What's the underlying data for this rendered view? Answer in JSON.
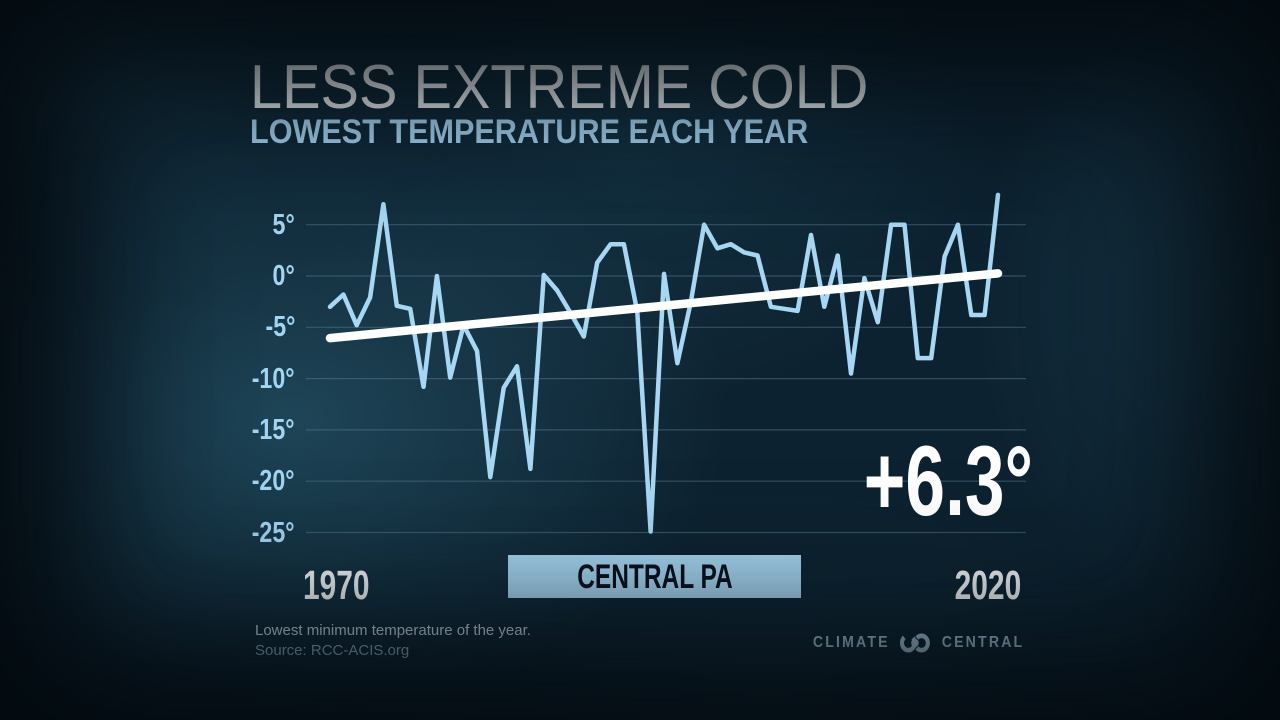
{
  "header": {
    "title": "LESS EXTREME COLD",
    "subtitle": "LOWEST TEMPERATURE EACH YEAR"
  },
  "chart_data": {
    "type": "line",
    "title": "LESS EXTREME COLD",
    "subtitle": "LOWEST TEMPERATURE EACH YEAR",
    "x": [
      1970,
      1971,
      1972,
      1973,
      1974,
      1975,
      1976,
      1977,
      1978,
      1979,
      1980,
      1981,
      1982,
      1983,
      1984,
      1985,
      1986,
      1987,
      1988,
      1989,
      1990,
      1991,
      1992,
      1993,
      1994,
      1995,
      1996,
      1997,
      1998,
      1999,
      2000,
      2001,
      2002,
      2003,
      2004,
      2005,
      2006,
      2007,
      2008,
      2009,
      2010,
      2011,
      2012,
      2013,
      2014,
      2015,
      2016,
      2017,
      2018,
      2019,
      2020
    ],
    "values": [
      -3.0,
      -1.8,
      -4.8,
      -2.1,
      7.0,
      -2.9,
      -3.2,
      -10.8,
      0.0,
      -9.9,
      -4.8,
      -7.3,
      -19.6,
      -10.9,
      -8.8,
      -18.8,
      0.1,
      -1.4,
      -3.6,
      -5.9,
      1.3,
      3.1,
      3.1,
      -3.5,
      -24.9,
      0.2,
      -8.5,
      -2.6,
      5.0,
      2.7,
      3.1,
      2.3,
      2.0,
      -3.0,
      -3.2,
      -3.4,
      4.0,
      -3.0,
      2.0,
      -9.5,
      -0.2,
      -4.5,
      5.0,
      5.0,
      -8.0,
      -8.0,
      1.9,
      5.0,
      -3.8,
      -3.8,
      7.9
    ],
    "yticks": [
      5,
      0,
      -5,
      -10,
      -15,
      -20,
      -25
    ],
    "ytick_suffix": "°",
    "ylim": [
      -27,
      9
    ],
    "xlim": [
      1970,
      2020
    ],
    "x_start_label": "1970",
    "x_end_label": "2020",
    "location_label": "CENTRAL PA",
    "trend": {
      "start_value": -6.05,
      "end_value": 0.25,
      "label": "+6.3°"
    },
    "grid": true,
    "legend_position": "none",
    "series_color": "#a7d7f3",
    "trend_color": "#ffffff"
  },
  "footer": {
    "note": "Lowest minimum temperature of the year.",
    "source": "Source: RCC-ACIS.org",
    "brand_left": "CLIMATE",
    "brand_right": "CENTRAL"
  }
}
